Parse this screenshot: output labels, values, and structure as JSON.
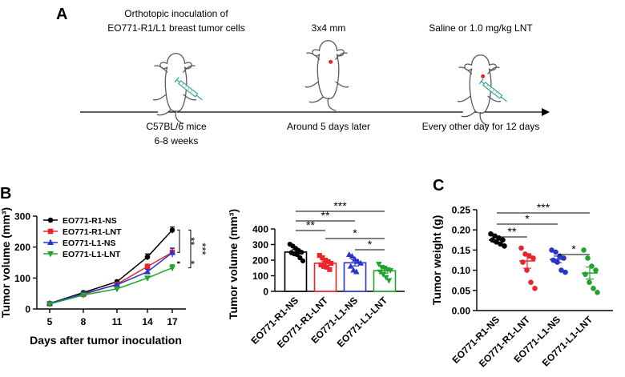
{
  "panels": {
    "a": "A",
    "b": "B",
    "c": "C"
  },
  "timeline": {
    "steps": [
      {
        "top": [
          "Orthotopic inoculation of",
          "EO771-R1/L1 breast tumor cells"
        ],
        "bottom": [
          "C57BL/6 mice",
          "6-8 weeks"
        ]
      },
      {
        "top": [
          "3x4 mm"
        ],
        "bottom": [
          "Around 5 days later"
        ]
      },
      {
        "top": [
          "Saline or 1.0 mg/kg LNT"
        ],
        "bottom": [
          "Every other day for 12 days"
        ]
      }
    ]
  },
  "colors": {
    "R1-NS": "#000000",
    "R1-LNT": "#e8262a",
    "L1-NS": "#2b35c7",
    "L1-LNT": "#22a32e",
    "mouse": "#555555",
    "dot": "#e8262a",
    "syringe": "#2a9e8a"
  },
  "chart_data": [
    {
      "type": "line",
      "x": [
        5,
        8,
        11,
        14,
        17
      ],
      "xlabel": "Days after tumor inoculation",
      "ylabel": "Tumor volume (mm³)",
      "ylim": [
        0,
        300
      ],
      "yticks": [
        0,
        100,
        200,
        300
      ],
      "legend": "top-left",
      "series": [
        {
          "name": "EO771-R1-NS",
          "key": "R1-NS",
          "marker": "circle",
          "values": [
            18,
            53,
            88,
            168,
            255
          ],
          "err": [
            2,
            3,
            5,
            10,
            10
          ]
        },
        {
          "name": "EO771-R1-LNT",
          "key": "R1-LNT",
          "marker": "square",
          "values": [
            17,
            47,
            80,
            137,
            183
          ],
          "err": [
            2,
            3,
            5,
            8,
            12
          ]
        },
        {
          "name": "EO771-L1-NS",
          "key": "L1-NS",
          "marker": "triangle",
          "values": [
            18,
            50,
            78,
            120,
            182
          ],
          "err": [
            2,
            3,
            5,
            8,
            15
          ]
        },
        {
          "name": "EO771-L1-LNT",
          "key": "L1-LNT",
          "marker": "triangle-down",
          "values": [
            16,
            45,
            65,
            100,
            133
          ],
          "err": [
            2,
            3,
            4,
            6,
            10
          ]
        }
      ],
      "significance": [
        "**",
        "***",
        "**",
        "*"
      ]
    },
    {
      "type": "bar",
      "ylabel": "Tumor volume (mm³)",
      "ylim": [
        0,
        400
      ],
      "yticks": [
        0,
        100,
        200,
        300,
        400
      ],
      "categories": [
        "EO771-R1-NS",
        "EO771-R1-LNT",
        "EO771-L1-NS",
        "EO771-L1-LNT"
      ],
      "keys": [
        "R1-NS",
        "R1-LNT",
        "L1-NS",
        "L1-LNT"
      ],
      "markers": [
        "circle",
        "square",
        "triangle",
        "triangle-down"
      ],
      "values": [
        252,
        180,
        183,
        132
      ],
      "err": [
        15,
        14,
        20,
        15
      ],
      "points": [
        [
          302,
          290,
          275,
          262,
          250,
          248,
          240,
          235,
          215,
          195
        ],
        [
          230,
          215,
          200,
          190,
          180,
          170,
          160,
          155,
          140
        ],
        [
          235,
          225,
          205,
          190,
          180,
          160,
          135,
          125
        ],
        [
          175,
          155,
          150,
          140,
          135,
          125,
          110,
          90,
          70
        ]
      ],
      "comparisons": [
        {
          "from": 0,
          "to": 3,
          "label": "***"
        },
        {
          "from": 0,
          "to": 2,
          "label": "**"
        },
        {
          "from": 0,
          "to": 1,
          "label": "**"
        },
        {
          "from": 1,
          "to": 3,
          "label": "*"
        },
        {
          "from": 2,
          "to": 3,
          "label": "*"
        }
      ]
    },
    {
      "type": "scatter",
      "ylabel": "Tumor weight (g)",
      "ylim": [
        0,
        0.25
      ],
      "yticks": [
        "0.00",
        "0.05",
        "0.10",
        "0.15",
        "0.20",
        "0.25"
      ],
      "categories": [
        "EO771-R1-NS",
        "EO771-R1-LNT",
        "EO771-L1-NS",
        "EO771-L1-LNT"
      ],
      "keys": [
        "R1-NS",
        "R1-LNT",
        "L1-NS",
        "L1-LNT"
      ],
      "markers": [
        "circle",
        "circle",
        "circle",
        "circle"
      ],
      "values": [
        0.175,
        0.123,
        0.127,
        0.093
      ],
      "err": [
        0.006,
        0.018,
        0.008,
        0.015
      ],
      "points": [
        [
          0.19,
          0.185,
          0.18,
          0.175,
          0.175,
          0.17,
          0.165,
          0.16
        ],
        [
          0.155,
          0.14,
          0.135,
          0.13,
          0.12,
          0.1,
          0.07,
          0.055
        ],
        [
          0.15,
          0.145,
          0.135,
          0.13,
          0.125,
          0.12,
          0.1,
          0.095
        ],
        [
          0.15,
          0.13,
          0.11,
          0.1,
          0.09,
          0.07,
          0.055,
          0.045
        ]
      ],
      "comparisons": [
        {
          "from": 0,
          "to": 3,
          "label": "***"
        },
        {
          "from": 0,
          "to": 2,
          "label": "*"
        },
        {
          "from": 0,
          "to": 1,
          "label": "**"
        },
        {
          "from": 2,
          "to": 3,
          "label": "*"
        }
      ]
    }
  ]
}
